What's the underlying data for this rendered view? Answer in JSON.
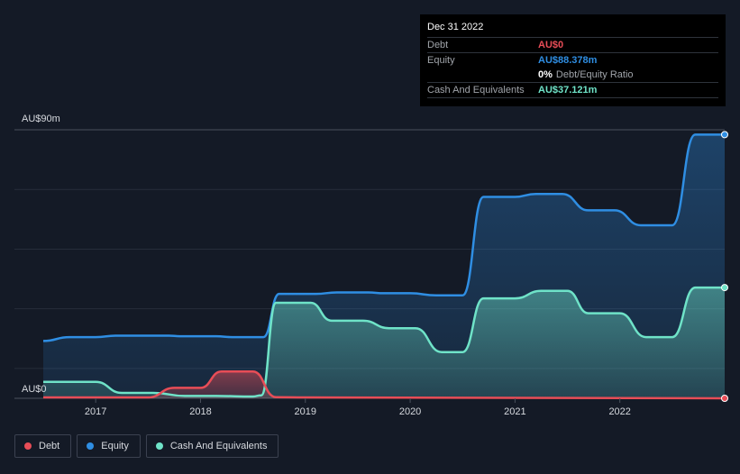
{
  "chart_data": {
    "type": "area",
    "currency": "AU$",
    "ylim": [
      0,
      90
    ],
    "y_top_label": "AU$90m",
    "y_bottom_label": "AU$0",
    "xlim": [
      2016.5,
      2023.0
    ],
    "x_ticks": [
      "2017",
      "2018",
      "2019",
      "2020",
      "2021",
      "2022"
    ],
    "series": [
      {
        "name": "Debt",
        "color": "#e84d57",
        "points": [
          [
            2016.5,
            0.3
          ],
          [
            2017.5,
            0.3
          ],
          [
            2017.75,
            3.5
          ],
          [
            2018.0,
            3.5
          ],
          [
            2018.2,
            9.0
          ],
          [
            2018.5,
            9.0
          ],
          [
            2018.72,
            0.4
          ],
          [
            2019.0,
            0.3
          ],
          [
            2023.0,
            0.0
          ]
        ]
      },
      {
        "name": "Equity",
        "color": "#2f8ee3",
        "points": [
          [
            2016.5,
            19.2
          ],
          [
            2016.75,
            20.5
          ],
          [
            2017.0,
            20.5
          ],
          [
            2017.2,
            21.0
          ],
          [
            2017.7,
            21.0
          ],
          [
            2017.8,
            20.8
          ],
          [
            2018.15,
            20.8
          ],
          [
            2018.3,
            20.5
          ],
          [
            2018.6,
            20.5
          ],
          [
            2018.75,
            35.0
          ],
          [
            2019.1,
            35.0
          ],
          [
            2019.3,
            35.5
          ],
          [
            2019.6,
            35.5
          ],
          [
            2019.75,
            35.2
          ],
          [
            2020.0,
            35.2
          ],
          [
            2020.25,
            34.5
          ],
          [
            2020.5,
            34.5
          ],
          [
            2020.7,
            67.5
          ],
          [
            2021.0,
            67.5
          ],
          [
            2021.2,
            68.5
          ],
          [
            2021.45,
            68.5
          ],
          [
            2021.7,
            63.0
          ],
          [
            2021.95,
            63.0
          ],
          [
            2022.2,
            58.0
          ],
          [
            2022.5,
            58.0
          ],
          [
            2022.72,
            88.378
          ],
          [
            2023.0,
            88.378
          ]
        ]
      },
      {
        "name": "Cash And Equivalents",
        "color": "#6fe3c8",
        "points": [
          [
            2016.5,
            5.5
          ],
          [
            2017.0,
            5.5
          ],
          [
            2017.25,
            1.8
          ],
          [
            2017.55,
            1.8
          ],
          [
            2017.85,
            0.8
          ],
          [
            2018.15,
            0.8
          ],
          [
            2018.5,
            0.6
          ],
          [
            2018.58,
            1.0
          ],
          [
            2018.72,
            32.0
          ],
          [
            2019.05,
            32.0
          ],
          [
            2019.25,
            26.0
          ],
          [
            2019.55,
            26.0
          ],
          [
            2019.8,
            23.5
          ],
          [
            2020.05,
            23.5
          ],
          [
            2020.3,
            15.5
          ],
          [
            2020.5,
            15.5
          ],
          [
            2020.7,
            33.5
          ],
          [
            2021.0,
            33.5
          ],
          [
            2021.25,
            36.0
          ],
          [
            2021.5,
            36.0
          ],
          [
            2021.7,
            28.5
          ],
          [
            2022.0,
            28.5
          ],
          [
            2022.25,
            20.5
          ],
          [
            2022.5,
            20.5
          ],
          [
            2022.72,
            37.121
          ],
          [
            2023.0,
            37.121
          ]
        ]
      }
    ]
  },
  "tooltip": {
    "date": "Dec 31 2022",
    "debt_label": "Debt",
    "debt_value": "AU$0",
    "equity_label": "Equity",
    "equity_value": "AU$88.378m",
    "ratio_value": "0%",
    "ratio_label": "Debt/Equity Ratio",
    "cash_label": "Cash And Equivalents",
    "cash_value": "AU$37.121m"
  },
  "legend": {
    "debt": "Debt",
    "equity": "Equity",
    "cash": "Cash And Equivalents"
  },
  "colors": {
    "debt": "#e84d57",
    "equity": "#2f8ee3",
    "cash": "#6fe3c8",
    "background": "#141a26"
  }
}
